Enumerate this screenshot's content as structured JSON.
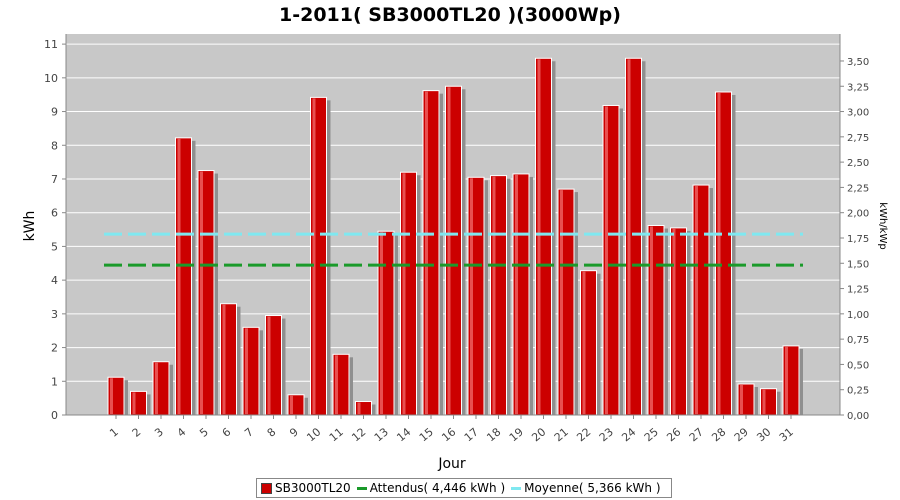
{
  "chart_data": {
    "type": "bar",
    "title": "1-2011( SB3000TL20 )(3000Wp)",
    "xlabel": "Jour",
    "ylabel": "kWh",
    "y2label": "kWh/kWp",
    "ylim": [
      0,
      11.3
    ],
    "y_ticks": [
      "0",
      "1",
      "2",
      "3",
      "4",
      "5",
      "6",
      "7",
      "8",
      "9",
      "10",
      "11"
    ],
    "y2_ticks": [
      "0,00",
      "0,25",
      "0,50",
      "0,75",
      "1,00",
      "1,25",
      "1,50",
      "1,75",
      "2,00",
      "2,25",
      "2,50",
      "2,75",
      "3,00",
      "3,25",
      "3,50"
    ],
    "categories": [
      "1",
      "2",
      "3",
      "4",
      "5",
      "6",
      "7",
      "8",
      "9",
      "10",
      "11",
      "12",
      "13",
      "14",
      "15",
      "16",
      "17",
      "18",
      "19",
      "20",
      "21",
      "22",
      "23",
      "24",
      "25",
      "26",
      "27",
      "28",
      "29",
      "30",
      "31"
    ],
    "series": [
      {
        "name": "SB3000TL20",
        "color": "#cc0000",
        "values": [
          1.12,
          0.7,
          1.58,
          8.22,
          7.25,
          3.3,
          2.6,
          2.95,
          0.6,
          9.42,
          1.8,
          0.4,
          5.45,
          7.2,
          9.62,
          9.75,
          7.05,
          7.1,
          7.15,
          10.58,
          6.7,
          4.28,
          9.18,
          10.58,
          5.62,
          5.55,
          6.82,
          9.58,
          0.92,
          0.78,
          2.05
        ]
      }
    ],
    "reference_lines": [
      {
        "name": "Attendus",
        "label": "Attendus( 4,446 kWh )",
        "value": 4.446,
        "color": "#1a9a2a",
        "style": "dashed"
      },
      {
        "name": "Moyenne",
        "label": "Moyenne( 5,366 kWh )",
        "value": 5.366,
        "color": "#7fe8f0",
        "style": "dashed"
      }
    ],
    "legend": {
      "placement": "bottom",
      "series_label": "SB3000TL20"
    },
    "grid": true,
    "plot_background": "#c8c8c8"
  }
}
